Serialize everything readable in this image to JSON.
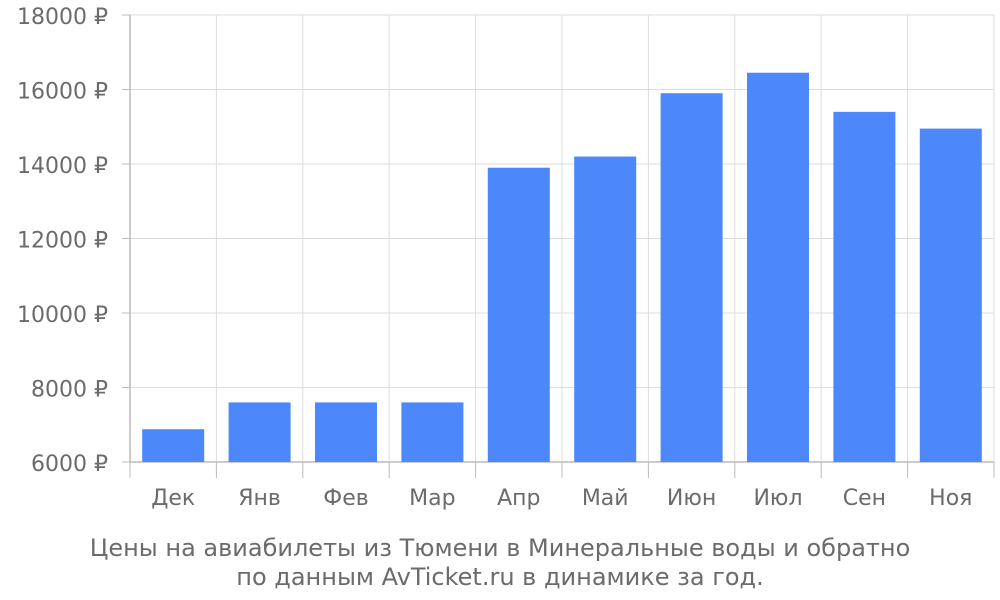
{
  "chart_data": {
    "type": "bar",
    "categories": [
      "Дек",
      "Янв",
      "Фев",
      "Мар",
      "Апр",
      "Май",
      "Июн",
      "Июл",
      "Сен",
      "Ноя"
    ],
    "values": [
      6880,
      7600,
      7600,
      7600,
      13900,
      14200,
      15900,
      16450,
      15400,
      14950
    ],
    "yticks": [
      "6000 ₽",
      "8000 ₽",
      "10000 ₽",
      "12000 ₽",
      "14000 ₽",
      "16000 ₽",
      "18000 ₽"
    ],
    "ylim": [
      6000,
      18000
    ],
    "grid": true,
    "bar_color": "#4d88fa",
    "caption_line1": "Цены на авиабилеты из Тюмени в Минеральные воды и обратно",
    "caption_line2": "по данным AvTicket.ru в динамике за год."
  }
}
